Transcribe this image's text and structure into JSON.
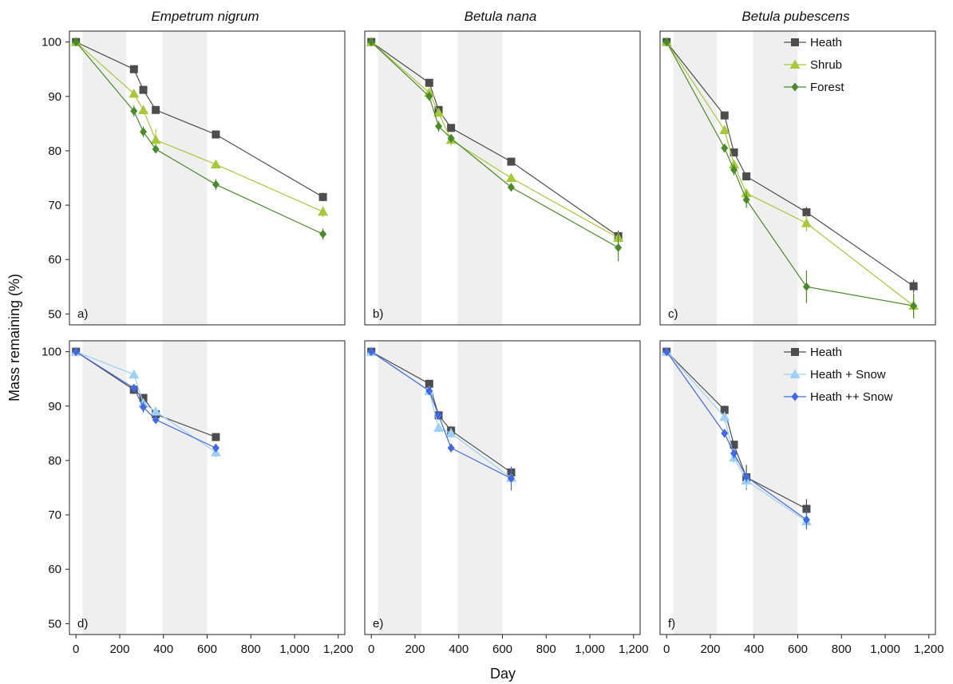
{
  "figure": {
    "ylabel": "Mass remaining (%)",
    "xlabel": "Day",
    "column_titles": [
      "Empetrum nigrum",
      "Betula nana",
      "Betula pubescens"
    ],
    "panel_labels": [
      "a)",
      "b)",
      "c)",
      "d)",
      "e)",
      "f)"
    ],
    "x_tick_labels": [
      "0",
      "200",
      "400",
      "600",
      "800",
      "1,000",
      "1,200"
    ],
    "y_tick_labels": [
      "50",
      "60",
      "70",
      "80",
      "90",
      "100"
    ],
    "shaded_periods_days": [
      [
        30,
        230
      ],
      [
        395,
        600
      ]
    ],
    "legend_top": [
      "Heath",
      "Shrub",
      "Forest"
    ],
    "legend_bottom": [
      "Heath",
      "Heath + Snow",
      "Heath ++ Snow"
    ]
  },
  "colors": {
    "heath": "#4d4d4d",
    "shrub": "#a6c93a",
    "forest": "#4a8a2a",
    "heath_snow": "#9dd0f5",
    "heath_snow2": "#4169e1",
    "shade": "#efefef",
    "axis": "#222222"
  },
  "chart_data": [
    {
      "type": "line",
      "panel": "a)",
      "title": "Empetrum nigrum",
      "xlim": [
        -30,
        1230
      ],
      "ylim": [
        48,
        102
      ],
      "grid": false,
      "series": [
        {
          "name": "Heath",
          "marker": "square",
          "color": "#4d4d4d",
          "x": [
            0,
            265,
            308,
            365,
            640,
            1130
          ],
          "y": [
            100,
            95.0,
            91.2,
            87.5,
            83.0,
            71.5
          ],
          "err": [
            0,
            0.4,
            0.6,
            0.4,
            0.4,
            0.8
          ]
        },
        {
          "name": "Shrub",
          "marker": "triangle",
          "color": "#a6c93a",
          "x": [
            0,
            265,
            308,
            365,
            640,
            1130
          ],
          "y": [
            100,
            90.5,
            87.5,
            82.0,
            77.5,
            68.8
          ],
          "err": [
            0,
            0.8,
            0.8,
            2.0,
            0.8,
            1.0
          ]
        },
        {
          "name": "Forest",
          "marker": "diamond",
          "color": "#4a8a2a",
          "x": [
            0,
            265,
            308,
            365,
            640,
            1130
          ],
          "y": [
            100,
            87.3,
            83.5,
            80.3,
            73.8,
            64.7
          ],
          "err": [
            0,
            1.0,
            1.0,
            0.8,
            1.0,
            1.0
          ]
        }
      ]
    },
    {
      "type": "line",
      "panel": "b)",
      "title": "Betula nana",
      "xlim": [
        -30,
        1230
      ],
      "ylim": [
        48,
        102
      ],
      "grid": false,
      "series": [
        {
          "name": "Heath",
          "marker": "square",
          "color": "#4d4d4d",
          "x": [
            0,
            265,
            308,
            365,
            640,
            1130
          ],
          "y": [
            100,
            92.5,
            87.5,
            84.2,
            78.0,
            64.3
          ],
          "err": [
            0,
            0.4,
            0.5,
            0.4,
            0.4,
            1.0
          ]
        },
        {
          "name": "Shrub",
          "marker": "triangle",
          "color": "#a6c93a",
          "x": [
            0,
            265,
            308,
            365,
            640,
            1130
          ],
          "y": [
            100,
            90.7,
            87.0,
            82.0,
            75.0,
            64.0
          ],
          "err": [
            0,
            0.5,
            0.7,
            1.0,
            0.8,
            1.0
          ]
        },
        {
          "name": "Forest",
          "marker": "diamond",
          "color": "#4a8a2a",
          "x": [
            0,
            265,
            308,
            365,
            640,
            1130
          ],
          "y": [
            100,
            90.0,
            84.5,
            82.3,
            73.3,
            62.2
          ],
          "err": [
            0,
            0.8,
            1.0,
            0.8,
            0.8,
            2.5
          ]
        }
      ]
    },
    {
      "type": "line",
      "panel": "c)",
      "title": "Betula pubescens",
      "xlim": [
        -30,
        1230
      ],
      "ylim": [
        48,
        102
      ],
      "grid": false,
      "series": [
        {
          "name": "Heath",
          "marker": "square",
          "color": "#4d4d4d",
          "x": [
            0,
            265,
            308,
            365,
            640,
            1130
          ],
          "y": [
            100,
            86.5,
            79.7,
            75.3,
            68.7,
            55.1
          ],
          "err": [
            0,
            0.5,
            0.6,
            0.5,
            1.0,
            1.2
          ]
        },
        {
          "name": "Shrub",
          "marker": "triangle",
          "color": "#a6c93a",
          "x": [
            0,
            265,
            308,
            365,
            640,
            1130
          ],
          "y": [
            100,
            83.8,
            77.5,
            72.2,
            66.7,
            51.5
          ],
          "err": [
            0,
            0.8,
            0.8,
            0.8,
            1.5,
            2.0
          ]
        },
        {
          "name": "Forest",
          "marker": "diamond",
          "color": "#4a8a2a",
          "x": [
            0,
            265,
            308,
            365,
            640,
            1130
          ],
          "y": [
            100,
            80.5,
            76.5,
            71.0,
            55.0,
            51.5
          ],
          "err": [
            0,
            0.8,
            1.0,
            1.5,
            3.0,
            2.3
          ]
        }
      ]
    },
    {
      "type": "line",
      "panel": "d)",
      "title": "",
      "xlim": [
        -30,
        1230
      ],
      "ylim": [
        48,
        102
      ],
      "grid": false,
      "series": [
        {
          "name": "Heath",
          "marker": "square",
          "color": "#4d4d4d",
          "x": [
            0,
            265,
            308,
            365,
            640
          ],
          "y": [
            100,
            93.0,
            91.5,
            88.5,
            84.3
          ],
          "err": [
            0,
            0.8,
            0.6,
            0.5,
            0.5
          ]
        },
        {
          "name": "Heath + Snow",
          "marker": "triangle",
          "color": "#9dd0f5",
          "x": [
            0,
            265,
            308,
            365,
            640
          ],
          "y": [
            100,
            95.8,
            90.5,
            89.0,
            81.5
          ],
          "err": [
            0,
            0.4,
            0.8,
            0.8,
            1.0
          ]
        },
        {
          "name": "Heath ++ Snow",
          "marker": "diamond",
          "color": "#4169e1",
          "x": [
            0,
            265,
            308,
            365,
            640
          ],
          "y": [
            100,
            93.3,
            89.8,
            87.5,
            82.3
          ],
          "err": [
            0,
            0.6,
            1.0,
            0.6,
            0.8
          ]
        }
      ]
    },
    {
      "type": "line",
      "panel": "e)",
      "title": "",
      "xlim": [
        -30,
        1230
      ],
      "ylim": [
        48,
        102
      ],
      "grid": false,
      "series": [
        {
          "name": "Heath",
          "marker": "square",
          "color": "#4d4d4d",
          "x": [
            0,
            265,
            308,
            365,
            640
          ],
          "y": [
            100,
            94.1,
            88.3,
            85.5,
            77.8
          ],
          "err": [
            0,
            0.4,
            0.6,
            0.8,
            0.6
          ]
        },
        {
          "name": "Heath + Snow",
          "marker": "triangle",
          "color": "#9dd0f5",
          "x": [
            0,
            265,
            308,
            365,
            640
          ],
          "y": [
            100,
            92.8,
            86.0,
            85.0,
            76.8
          ],
          "err": [
            0,
            0.5,
            0.8,
            1.0,
            0.8
          ]
        },
        {
          "name": "Heath ++ Snow",
          "marker": "diamond",
          "color": "#4169e1",
          "x": [
            0,
            265,
            308,
            365,
            640
          ],
          "y": [
            100,
            92.8,
            88.3,
            82.3,
            76.7
          ],
          "err": [
            0,
            0.5,
            0.8,
            0.8,
            2.2
          ]
        }
      ]
    },
    {
      "type": "line",
      "panel": "f)",
      "title": "",
      "xlim": [
        -30,
        1230
      ],
      "ylim": [
        48,
        102
      ],
      "grid": false,
      "series": [
        {
          "name": "Heath",
          "marker": "square",
          "color": "#4d4d4d",
          "x": [
            0,
            265,
            308,
            365,
            640
          ],
          "y": [
            100,
            89.3,
            82.9,
            76.9,
            71.1
          ],
          "err": [
            0,
            0.8,
            0.6,
            2.3,
            1.8
          ]
        },
        {
          "name": "Heath + Snow",
          "marker": "triangle",
          "color": "#9dd0f5",
          "x": [
            0,
            265,
            308,
            365,
            640
          ],
          "y": [
            100,
            88.0,
            80.5,
            76.3,
            68.8
          ],
          "err": [
            0,
            1.0,
            1.0,
            1.5,
            1.0
          ]
        },
        {
          "name": "Heath ++ Snow",
          "marker": "diamond",
          "color": "#4169e1",
          "x": [
            0,
            265,
            308,
            365,
            640
          ],
          "y": [
            100,
            85.0,
            81.3,
            77.0,
            69.1
          ],
          "err": [
            0,
            0.8,
            1.0,
            1.0,
            1.8
          ]
        }
      ]
    }
  ]
}
